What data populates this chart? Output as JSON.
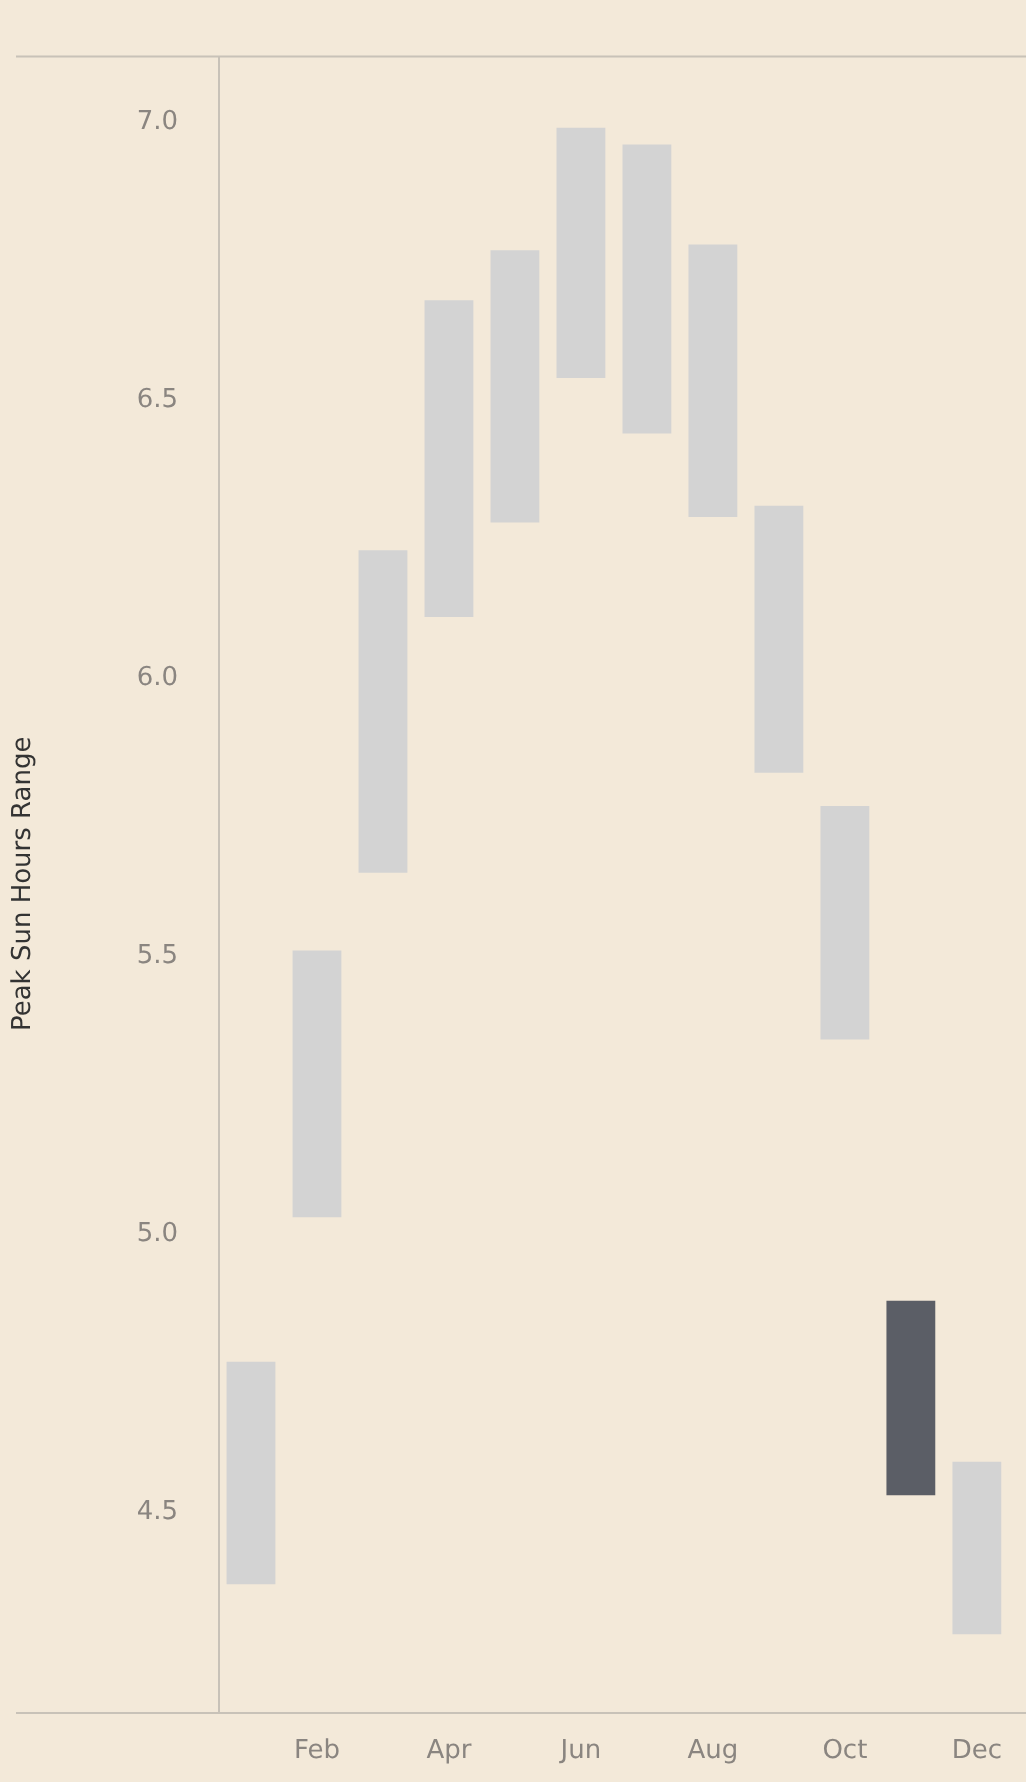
{
  "chart_data": {
    "type": "bar",
    "ylabel": "Peak Sun Hours Range",
    "categories": [
      null,
      "Feb",
      null,
      "Apr",
      null,
      "Jun",
      null,
      "Aug",
      null,
      "Oct",
      null,
      "Dec"
    ],
    "base": [
      4.37,
      5.03,
      5.65,
      6.11,
      6.28,
      6.54,
      6.44,
      6.29,
      5.83,
      5.35,
      4.53,
      4.28
    ],
    "values": [
      0.4,
      0.48,
      0.58,
      0.57,
      0.49,
      0.45,
      0.52,
      0.49,
      0.48,
      0.42,
      0.35,
      0.31
    ],
    "colors": [
      "#d3d3d3",
      "#d3d3d3",
      "#d3d3d3",
      "#d3d3d3",
      "#d3d3d3",
      "#d3d3d3",
      "#d3d3d3",
      "#d3d3d3",
      "#d3d3d3",
      "#d3d3d3",
      "#5b5e66",
      "#d3d3d3"
    ],
    "ylim": [
      4.14,
      7.12
    ],
    "yticks": [
      {
        "value": 4.5,
        "label": "4.5"
      },
      {
        "value": 5,
        "label": "5.0"
      },
      {
        "value": 5.5,
        "label": "5.5"
      },
      {
        "value": 6,
        "label": "6.0"
      },
      {
        "value": 6.5,
        "label": "6.5"
      },
      {
        "value": 7,
        "label": "7.0"
      }
    ]
  }
}
